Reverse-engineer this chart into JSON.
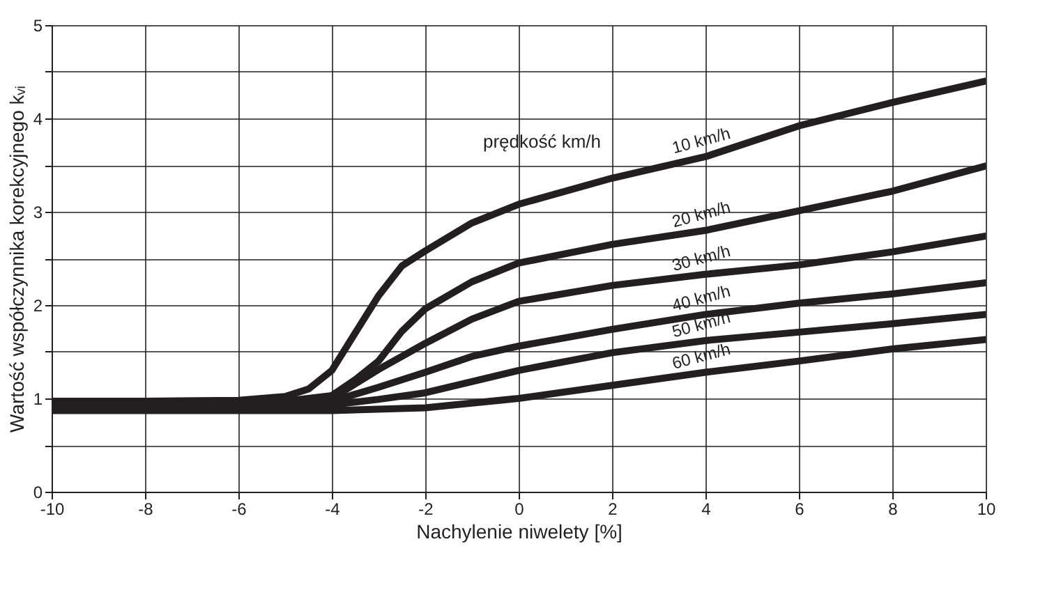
{
  "chart_data": {
    "type": "line",
    "xlabel": "Nachylenie niwelety [%]",
    "ylabel": "Wartość współczynnika korekcyjnego kᵥᵢ",
    "annotations": [
      "prędkość km/h"
    ],
    "xlim": [
      -10,
      10
    ],
    "xticks": [
      -10,
      -8,
      -6,
      -4,
      -2,
      0,
      2,
      4,
      6,
      8,
      10
    ],
    "ylim": [
      0,
      5
    ],
    "yticks": [
      0,
      {
        "value": 0.5,
        "label": null
      },
      1,
      {
        "value": 1.5,
        "label": null
      },
      2,
      {
        "value": 2.5,
        "label": null
      },
      3,
      {
        "value": 3.5,
        "label": null
      },
      4,
      {
        "value": 4.5,
        "label": null
      },
      5
    ],
    "grid": true,
    "marker": "none",
    "line_style": "solid",
    "series": [
      {
        "name": "10 km/h",
        "color": "#231f20",
        "x": [
          -10,
          -8,
          -6,
          -5,
          -4.5,
          -4,
          -3.5,
          -3,
          -2.5,
          -2,
          -1,
          0,
          2,
          4,
          6,
          8,
          10
        ],
        "values": [
          0.97,
          0.97,
          0.98,
          1.02,
          1.1,
          1.3,
          1.7,
          2.1,
          2.42,
          2.58,
          2.88,
          3.08,
          3.36,
          3.59,
          3.92,
          4.17,
          4.4
        ]
      },
      {
        "name": "20 km/h",
        "color": "#231f20",
        "x": [
          -10,
          -8,
          -6,
          -5,
          -4,
          -3.5,
          -3,
          -2.5,
          -2,
          -1,
          0,
          2,
          4,
          6,
          8,
          10
        ],
        "values": [
          0.95,
          0.95,
          0.95,
          0.97,
          1.03,
          1.2,
          1.4,
          1.72,
          1.96,
          2.25,
          2.45,
          2.65,
          2.8,
          3.01,
          3.22,
          3.49
        ]
      },
      {
        "name": "30 km/h",
        "color": "#231f20",
        "x": [
          -10,
          -8,
          -6,
          -5,
          -4,
          -3,
          -2,
          -1,
          0,
          2,
          4,
          6,
          8,
          10
        ],
        "values": [
          0.93,
          0.93,
          0.93,
          0.94,
          1.0,
          1.31,
          1.59,
          1.85,
          2.04,
          2.21,
          2.33,
          2.43,
          2.57,
          2.74
        ]
      },
      {
        "name": "40 km/h",
        "color": "#231f20",
        "x": [
          -10,
          -8,
          -6,
          -5,
          -4,
          -3,
          -2,
          -1,
          0,
          2,
          4,
          6,
          8,
          10
        ],
        "values": [
          0.91,
          0.91,
          0.91,
          0.91,
          0.97,
          1.12,
          1.28,
          1.45,
          1.56,
          1.74,
          1.9,
          2.02,
          2.12,
          2.24
        ]
      },
      {
        "name": "50 km/h",
        "color": "#231f20",
        "x": [
          -10,
          -8,
          -6,
          -5,
          -4,
          -3,
          -2,
          -1,
          0,
          2,
          4,
          6,
          8,
          10
        ],
        "values": [
          0.89,
          0.89,
          0.89,
          0.89,
          0.93,
          0.99,
          1.06,
          1.18,
          1.3,
          1.49,
          1.62,
          1.71,
          1.8,
          1.9
        ]
      },
      {
        "name": "60 km/h",
        "color": "#231f20",
        "x": [
          -10,
          -8,
          -6,
          -4,
          -2,
          0,
          2,
          4,
          6,
          8,
          10
        ],
        "values": [
          0.87,
          0.87,
          0.87,
          0.87,
          0.9,
          1.0,
          1.14,
          1.28,
          1.4,
          1.53,
          1.63
        ]
      }
    ]
  }
}
